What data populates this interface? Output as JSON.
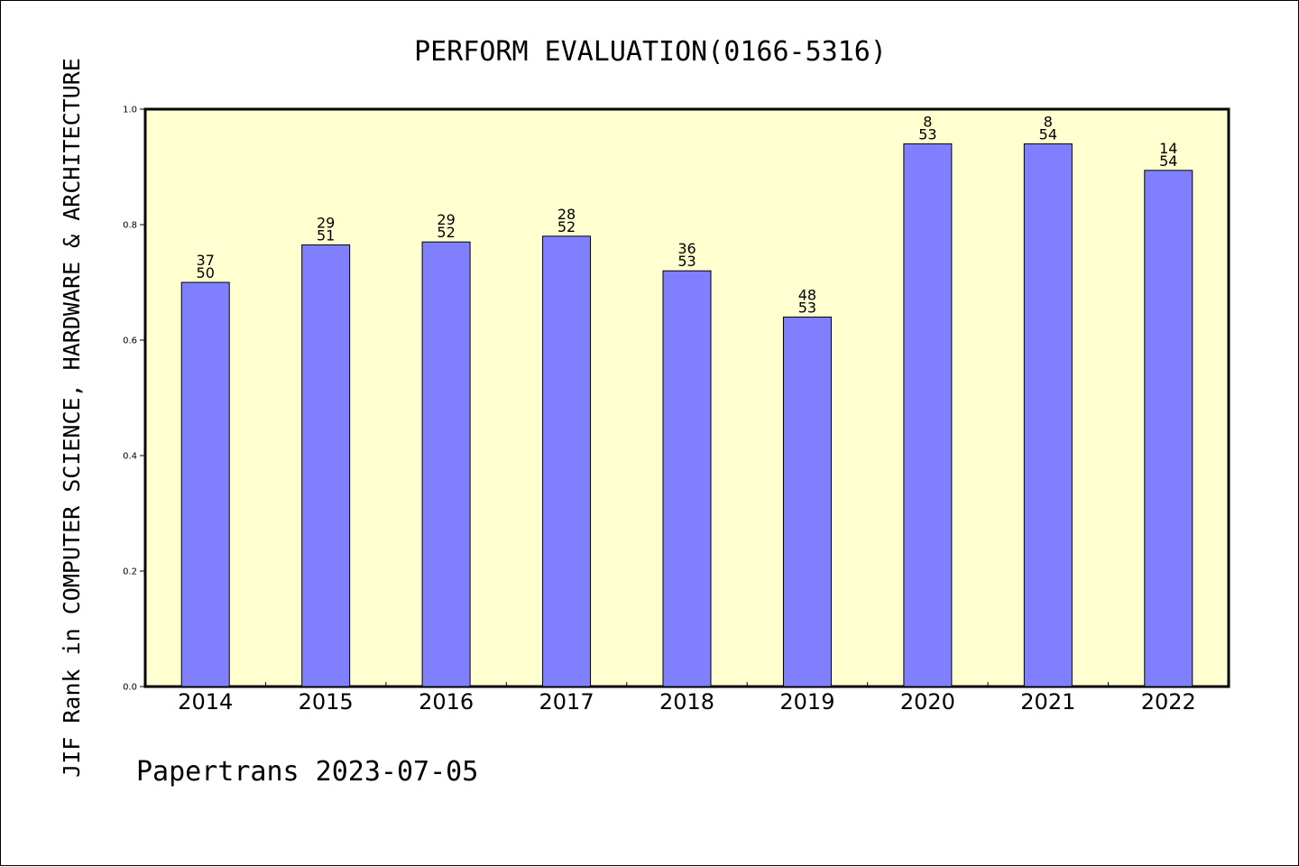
{
  "colors": {
    "plot_background": "#ffffd0",
    "bar_fill": "#8080ff",
    "bar_stroke": "#000000",
    "axis": "#000000"
  },
  "chart_data": {
    "type": "bar",
    "title": "PERFORM EVALUATION(0166-5316)",
    "xlabel": "",
    "ylabel": "JIF Rank in COMPUTER SCIENCE, HARDWARE & ARCHITECTURE",
    "categories": [
      "2014",
      "2015",
      "2016",
      "2017",
      "2018",
      "2019",
      "2020",
      "2021",
      "2022"
    ],
    "values": [
      0.7,
      0.765,
      0.77,
      0.78,
      0.72,
      0.64,
      0.94,
      0.94,
      0.894
    ],
    "ranks": [
      "37",
      "29",
      "29",
      "28",
      "36",
      "48",
      "8",
      "8",
      "14"
    ],
    "totals": [
      "50",
      "51",
      "52",
      "52",
      "53",
      "53",
      "53",
      "54",
      "54"
    ],
    "ylim": [
      0.0,
      1.0
    ],
    "yticks": [
      "0.0",
      "0.2",
      "0.4",
      "0.6",
      "0.8",
      "1.0"
    ],
    "grid": false,
    "legend": "none"
  },
  "footer": {
    "credit": "Papertrans 2023-07-05"
  }
}
